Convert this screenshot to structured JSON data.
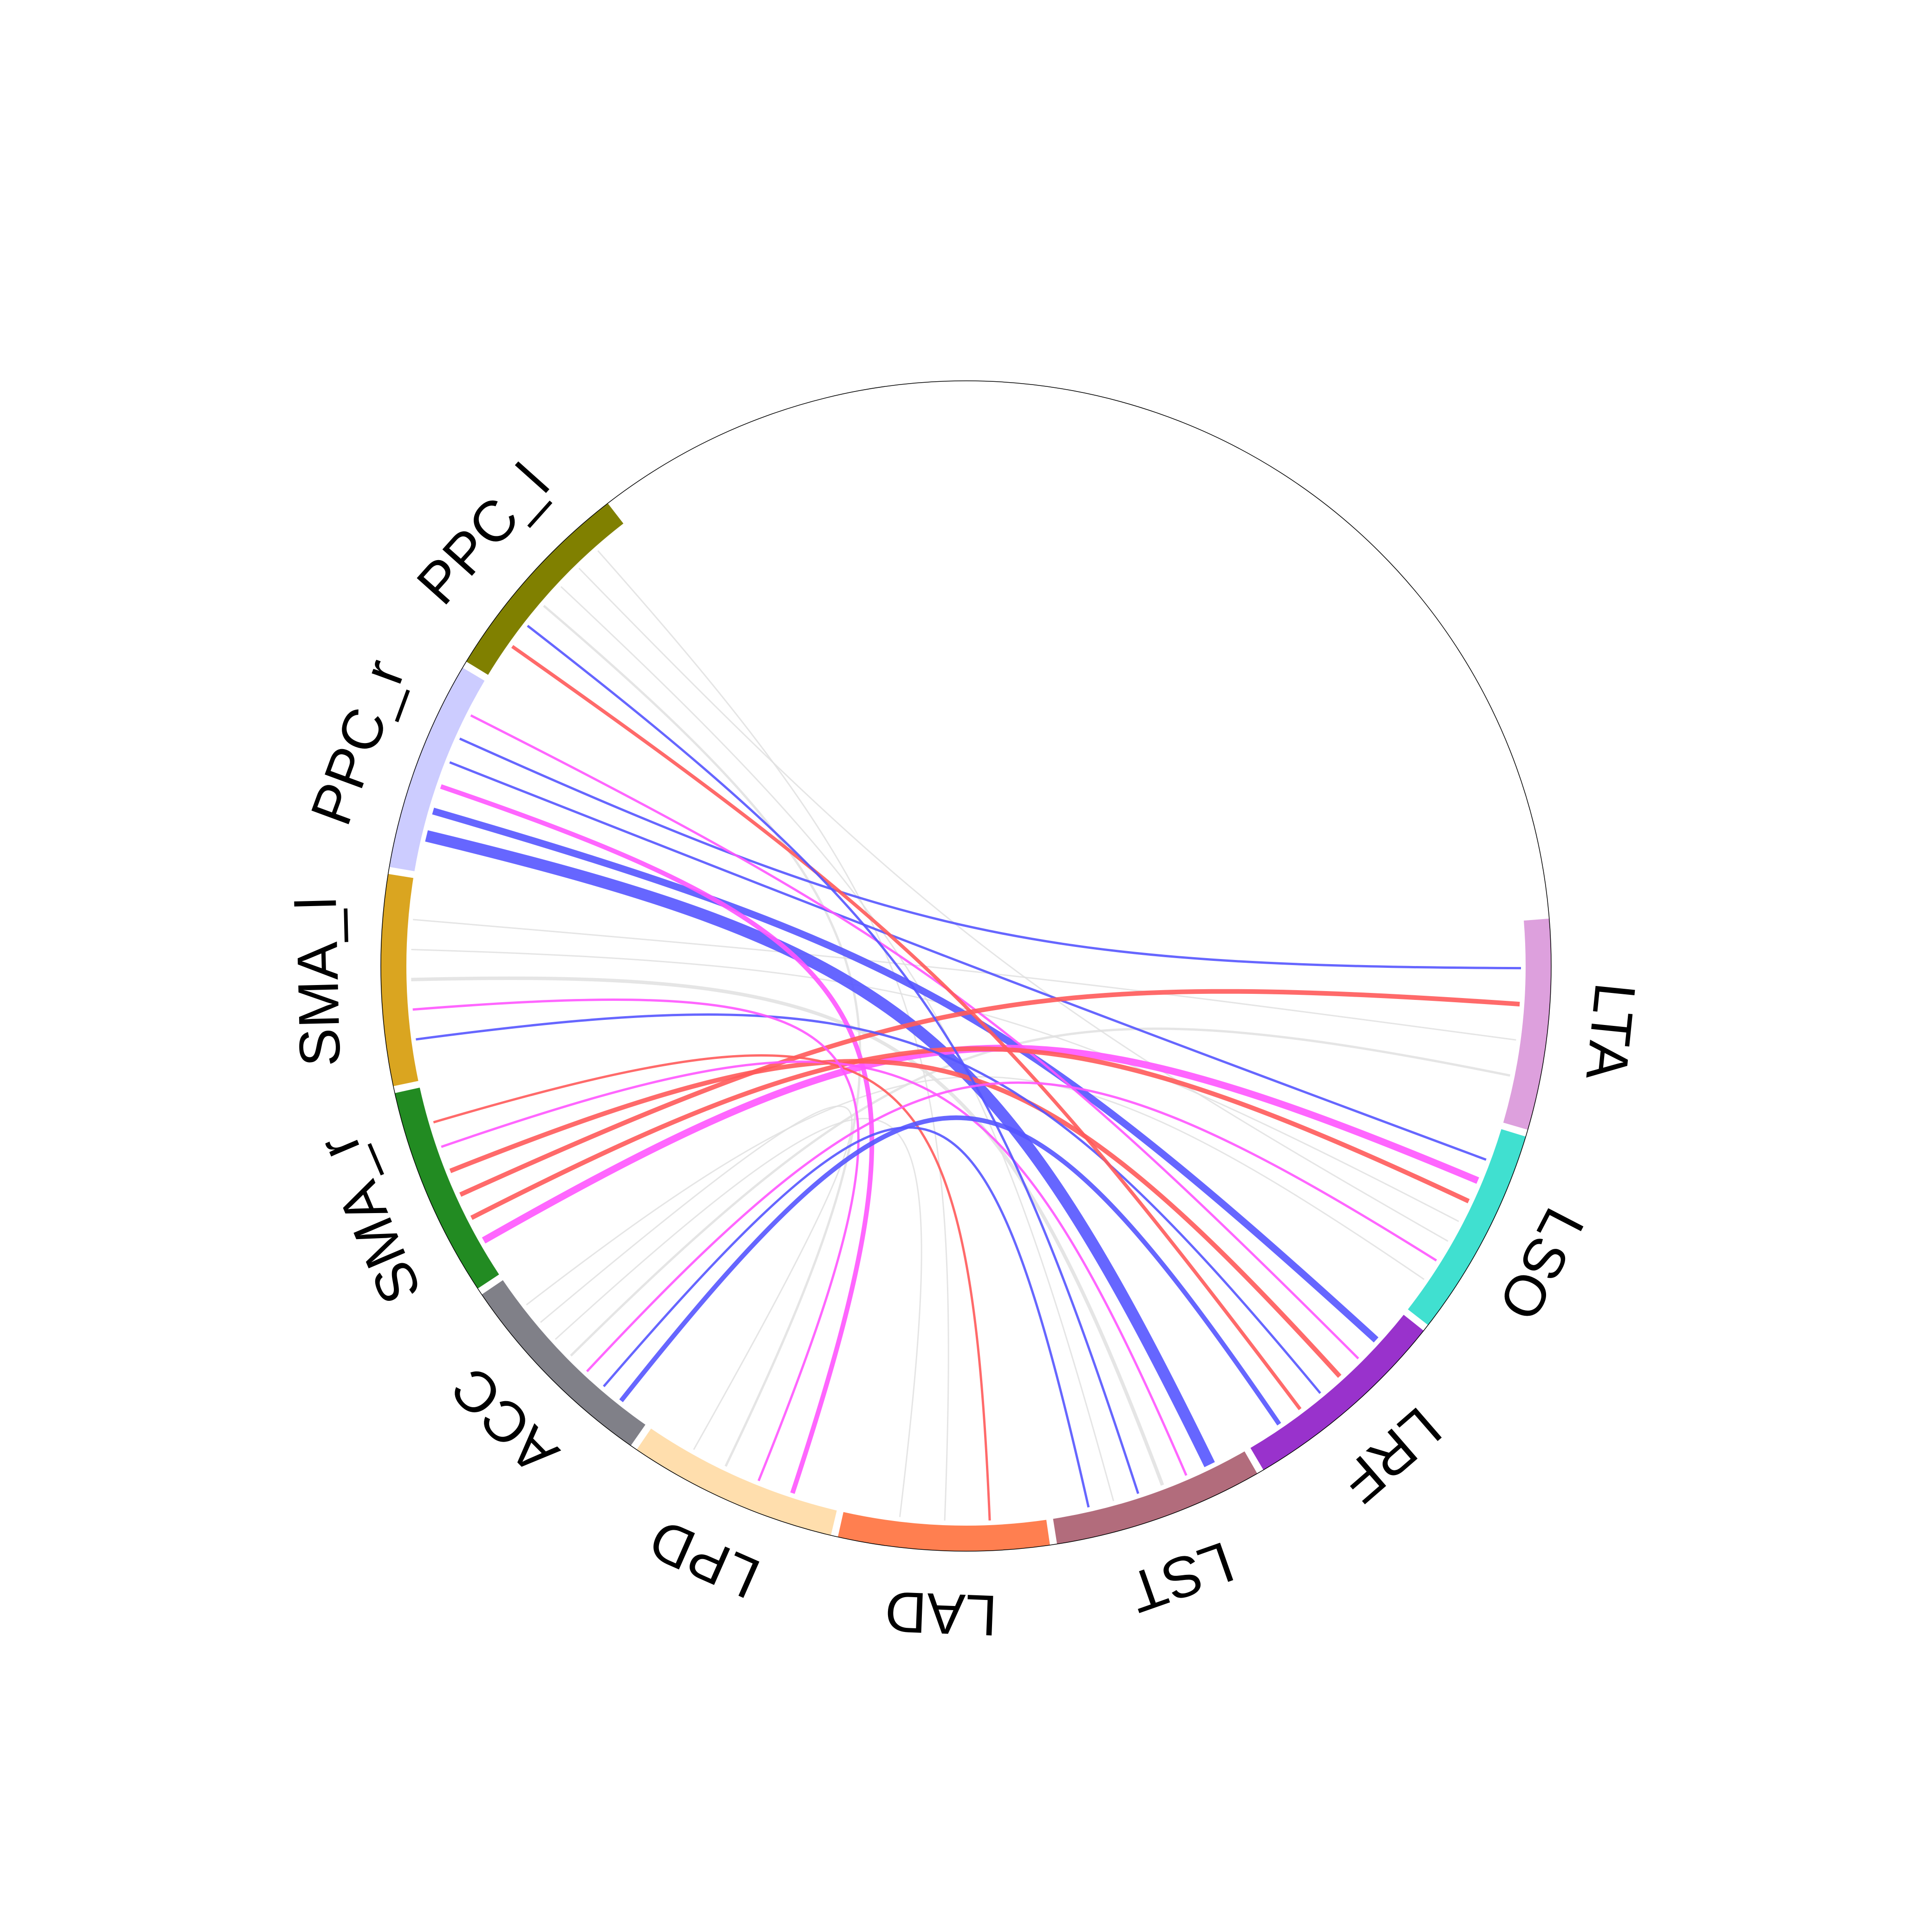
{
  "sectors": [
    {
      "name": "LTA",
      "color": "#DDA0DD"
    },
    {
      "name": "LSO",
      "color": "#40E0D0"
    },
    {
      "name": "LRF",
      "color": "#9932CC"
    },
    {
      "name": "LST",
      "color": "#B26C7C"
    },
    {
      "name": "LAD",
      "color": "#FF7F50"
    },
    {
      "name": "LPD",
      "color": "#FFDEAD"
    },
    {
      "name": "ACC",
      "color": "#808088"
    },
    {
      "name": "SMA_r",
      "color": "#228B22"
    },
    {
      "name": "SMA_l",
      "color": "#DAA520"
    },
    {
      "name": "PPC_r",
      "color": "#CCCCFF"
    },
    {
      "name": "PPC_l",
      "color": "#808000"
    }
  ],
  "chord_colors": {
    "red": "#FF5A5A",
    "blue": "#5555FF",
    "magenta": "#FF55FF",
    "grey": "#E0E0E0"
  },
  "chords": [
    {
      "from": "PPC_r",
      "to": "LST",
      "color": "blue",
      "weight": 5
    },
    {
      "from": "PPC_r",
      "to": "LRF",
      "color": "blue",
      "weight": 3
    },
    {
      "from": "PPC_r",
      "to": "LPD",
      "color": "magenta",
      "weight": 2
    },
    {
      "from": "PPC_r",
      "to": "LSO",
      "color": "blue",
      "weight": 1
    },
    {
      "from": "PPC_r",
      "to": "LTA",
      "color": "blue",
      "weight": 1
    },
    {
      "from": "PPC_r",
      "to": "LRF",
      "color": "magenta",
      "weight": 1
    },
    {
      "from": "SMA_r",
      "to": "LSO",
      "color": "magenta",
      "weight": 3
    },
    {
      "from": "SMA_r",
      "to": "LSO",
      "color": "red",
      "weight": 2
    },
    {
      "from": "SMA_r",
      "to": "LTA",
      "color": "red",
      "weight": 2
    },
    {
      "from": "SMA_r",
      "to": "LRF",
      "color": "red",
      "weight": 2
    },
    {
      "from": "SMA_r",
      "to": "LST",
      "color": "magenta",
      "weight": 1
    },
    {
      "from": "SMA_r",
      "to": "LAD",
      "color": "red",
      "weight": 1
    },
    {
      "from": "SMA_l",
      "to": "LRF",
      "color": "blue",
      "weight": 1
    },
    {
      "from": "SMA_l",
      "to": "LPD",
      "color": "magenta",
      "weight": 1
    },
    {
      "from": "SMA_l",
      "to": "LST",
      "color": "grey",
      "weight": 1.5
    },
    {
      "from": "SMA_l",
      "to": "LSO",
      "color": "grey",
      "weight": 0.6
    },
    {
      "from": "SMA_l",
      "to": "LTA",
      "color": "grey",
      "weight": 0.6
    },
    {
      "from": "PPC_l",
      "to": "LRF",
      "color": "red",
      "weight": 1.5
    },
    {
      "from": "PPC_l",
      "to": "LST",
      "color": "blue",
      "weight": 1
    },
    {
      "from": "PPC_l",
      "to": "LPD",
      "color": "grey",
      "weight": 1
    },
    {
      "from": "PPC_l",
      "to": "LST",
      "color": "grey",
      "weight": 0.6
    },
    {
      "from": "PPC_l",
      "to": "LSO",
      "color": "grey",
      "weight": 0.6
    },
    {
      "from": "PPC_l",
      "to": "LAD",
      "color": "grey",
      "weight": 0.6
    },
    {
      "from": "ACC",
      "to": "LRF",
      "color": "blue",
      "weight": 2
    },
    {
      "from": "ACC",
      "to": "LST",
      "color": "blue",
      "weight": 1
    },
    {
      "from": "ACC",
      "to": "LSO",
      "color": "magenta",
      "weight": 1
    },
    {
      "from": "ACC",
      "to": "LTA",
      "color": "grey",
      "weight": 1
    },
    {
      "from": "ACC",
      "to": "LAD",
      "color": "grey",
      "weight": 0.6
    },
    {
      "from": "ACC",
      "to": "LPD",
      "color": "grey",
      "weight": 0.6
    },
    {
      "from": "ACC",
      "to": "LSO",
      "color": "grey",
      "weight": 0.6
    }
  ]
}
